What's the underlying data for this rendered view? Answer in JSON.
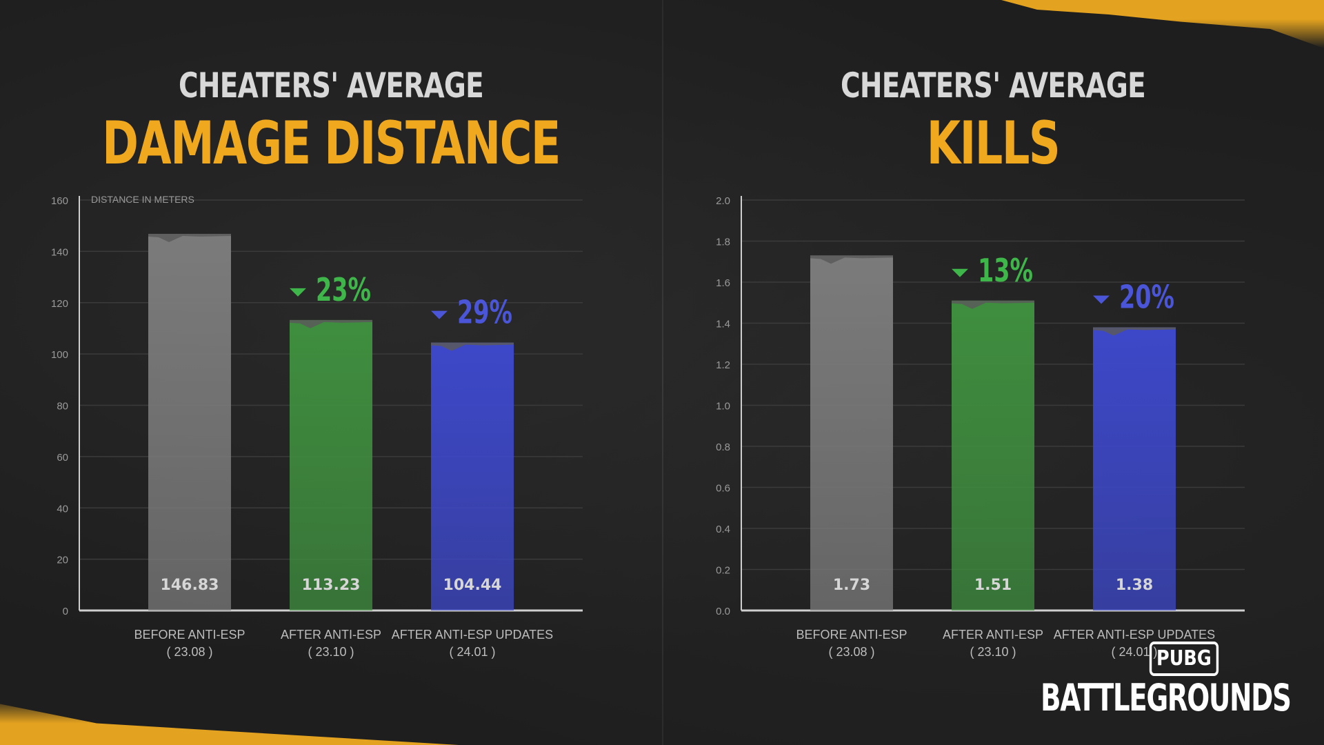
{
  "chart_data": [
    {
      "type": "bar",
      "title_top": "CHEATERS' AVERAGE",
      "title_main": "DAMAGE DISTANCE",
      "ylabel": "DISTANCE IN METERS",
      "ylim": [
        0,
        160
      ],
      "yticks": [
        "0",
        "20",
        "40",
        "60",
        "80",
        "100",
        "120",
        "140",
        "160"
      ],
      "grid": true,
      "categories": [
        {
          "line1": "BEFORE ANTI-ESP",
          "line2": "( 23.08 )"
        },
        {
          "line1": "AFTER ANTI-ESP",
          "line2": "( 23.10 )"
        },
        {
          "line1": "AFTER ANTI-ESP UPDATES",
          "line2": "( 24.01 )"
        }
      ],
      "values": [
        146.83,
        113.23,
        104.44
      ],
      "value_labels": [
        "146.83",
        "113.23",
        "104.44"
      ],
      "annotations": [
        null,
        "23%",
        "29%"
      ],
      "colors": [
        "#7b7b7b",
        "#3f8e3f",
        "#3d48c9"
      ],
      "annotation_colors": [
        null,
        "#3fb64a",
        "#4a55d8"
      ]
    },
    {
      "type": "bar",
      "title_top": "CHEATERS' AVERAGE",
      "title_main": "KILLS",
      "ylabel": "",
      "ylim": [
        0,
        2.0
      ],
      "yticks": [
        "0.0",
        "0.2",
        "0.4",
        "0.6",
        "0.8",
        "1.0",
        "1.2",
        "1.4",
        "1.6",
        "1.8",
        "2.0"
      ],
      "grid": true,
      "categories": [
        {
          "line1": "BEFORE ANTI-ESP",
          "line2": "( 23.08 )"
        },
        {
          "line1": "AFTER ANTI-ESP",
          "line2": "( 23.10 )"
        },
        {
          "line1": "AFTER ANTI-ESP UPDATES",
          "line2": "( 24.01 )"
        }
      ],
      "values": [
        1.73,
        1.51,
        1.38
      ],
      "value_labels": [
        "1.73",
        "1.51",
        "1.38"
      ],
      "annotations": [
        null,
        "13%",
        "20%"
      ],
      "colors": [
        "#7b7b7b",
        "#3f8e3f",
        "#3d48c9"
      ],
      "annotation_colors": [
        null,
        "#3fb64a",
        "#4a55d8"
      ]
    }
  ],
  "logo": {
    "top": "PUBG",
    "bottom": "BATTLEGROUNDS"
  }
}
